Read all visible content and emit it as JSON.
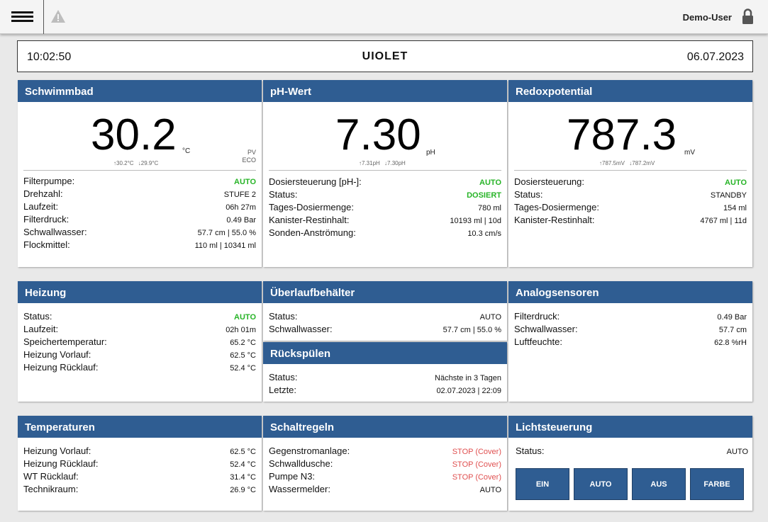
{
  "topbar": {
    "user": "Demo-User",
    "menu_icon": "hamburger-icon",
    "warning_icon": "warning-icon",
    "lock_icon": "lock-icon"
  },
  "clock": {
    "time": "10:02:50",
    "logo": "UIOLET",
    "date": "06.07.2023"
  },
  "schwimmbad": {
    "title": "Schwimmbad",
    "value": "30.2",
    "unit": "°C",
    "max": "↑30.2°C",
    "min": "↓29.9°C",
    "pv": "PV",
    "eco": "ECO",
    "rows": [
      {
        "label": "Filterpumpe:",
        "value": "AUTO"
      },
      {
        "label": "Drehzahl:",
        "value": "STUFE 2"
      },
      {
        "label": "Laufzeit:",
        "value": "06h 27m"
      },
      {
        "label": "Filterdruck:",
        "value": "0.49 Bar"
      },
      {
        "label": "Schwallwasser:",
        "value": "57.7 cm | 55.0 %"
      },
      {
        "label": "Flockmittel:",
        "value": "110 ml | 10341 ml"
      }
    ]
  },
  "ph": {
    "title": "pH-Wert",
    "value": "7.30",
    "unit": "pH",
    "max": "↑7.31pH",
    "min": "↓7.30pH",
    "rows": [
      {
        "label": "Dosiersteuerung [pH-]:",
        "value": "AUTO"
      },
      {
        "label": "Status:",
        "value": "DOSIERT"
      },
      {
        "label": "Tages-Dosiermenge:",
        "value": "780 ml"
      },
      {
        "label": "Kanister-Restinhalt:",
        "value": "10193 ml | 10d"
      },
      {
        "label": "Sonden-Anströmung:",
        "value": "10.3 cm/s"
      }
    ]
  },
  "redox": {
    "title": "Redoxpotential",
    "value": "787.3",
    "unit": "mV",
    "max": "↑787.5mV",
    "min": "↓787.2mV",
    "rows": [
      {
        "label": "Dosiersteuerung:",
        "value": "AUTO"
      },
      {
        "label": "Status:",
        "value": "STANDBY"
      },
      {
        "label": "Tages-Dosiermenge:",
        "value": "154 ml"
      },
      {
        "label": "Kanister-Restinhalt:",
        "value": "4767 ml | 11d"
      }
    ]
  },
  "heizung": {
    "title": "Heizung",
    "rows": [
      {
        "label": "Status:",
        "value": "AUTO"
      },
      {
        "label": "Laufzeit:",
        "value": "02h 01m"
      },
      {
        "label": "Speichertemperatur:",
        "value": "65.2 °C"
      },
      {
        "label": "Heizung Vorlauf:",
        "value": "62.5 °C"
      },
      {
        "label": "Heizung Rücklauf:",
        "value": "52.4 °C"
      }
    ]
  },
  "ueberlauf": {
    "title": "Überlaufbehälter",
    "rows": [
      {
        "label": "Status:",
        "value": "AUTO"
      },
      {
        "label": "Schwallwasser:",
        "value": "57.7 cm | 55.0 %"
      }
    ]
  },
  "rueckspuelen": {
    "title": "Rückspülen",
    "rows": [
      {
        "label": "Status:",
        "value": "Nächste in 3 Tagen"
      },
      {
        "label": "Letzte:",
        "value": "02.07.2023 | 22:09"
      }
    ]
  },
  "analog": {
    "title": "Analogsensoren",
    "rows": [
      {
        "label": "Filterdruck:",
        "value": "0.49 Bar"
      },
      {
        "label": "Schwallwasser:",
        "value": "57.7 cm"
      },
      {
        "label": "Luftfeuchte:",
        "value": "62.8 %rH"
      }
    ]
  },
  "temperaturen": {
    "title": "Temperaturen",
    "rows": [
      {
        "label": "Heizung Vorlauf:",
        "value": "62.5 °C"
      },
      {
        "label": "Heizung Rücklauf:",
        "value": "52.4 °C"
      },
      {
        "label": "WT Rücklauf:",
        "value": "31.4 °C"
      },
      {
        "label": "Technikraum:",
        "value": "26.9 °C"
      }
    ]
  },
  "schaltregeln": {
    "title": "Schaltregeln",
    "rows": [
      {
        "label": "Gegenstromanlage:",
        "value": "STOP (Cover)"
      },
      {
        "label": "Schwalldusche:",
        "value": "STOP (Cover)"
      },
      {
        "label": "Pumpe N3:",
        "value": "STOP (Cover)"
      },
      {
        "label": "Wassermelder:",
        "value": "AUTO"
      }
    ]
  },
  "licht": {
    "title": "Lichtsteuerung",
    "status_label": "Status:",
    "status_value": "AUTO",
    "buttons": [
      "EIN",
      "AUTO",
      "AUS",
      "FARBE"
    ]
  },
  "colors": {
    "header": "#2f5d92",
    "ok": "#27b427",
    "stop": "#e05050"
  }
}
